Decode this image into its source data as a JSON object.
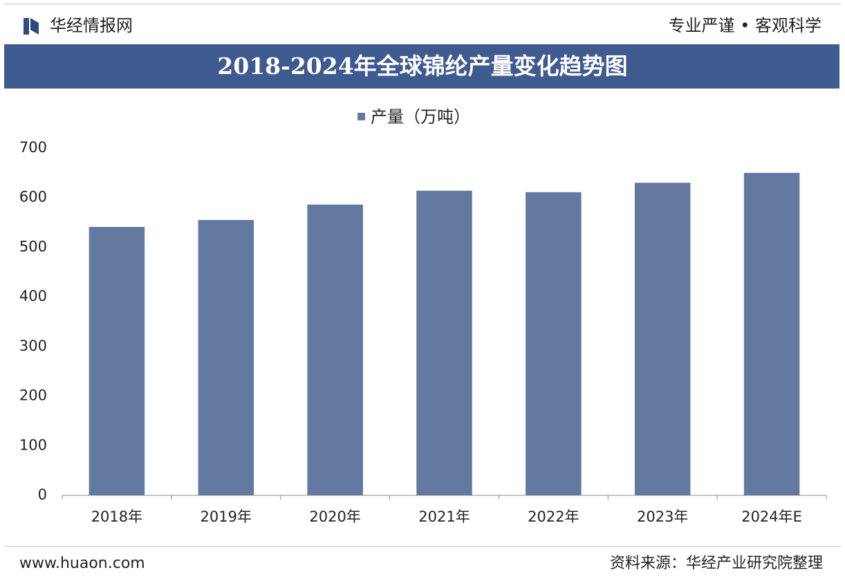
{
  "header": {
    "logo_text": "华经情报网",
    "slogan": "专业严谨 • 客观科学"
  },
  "chart_data": {
    "type": "bar",
    "title": "2018-2024年全球锦纶产量变化趋势图",
    "categories": [
      "2018年",
      "2019年",
      "2020年",
      "2021年",
      "2022年",
      "2023年",
      "2024年E"
    ],
    "series": [
      {
        "name": "产量（万吨）",
        "color": "#6479a0",
        "values": [
          541,
          555,
          586,
          614,
          611,
          630,
          650
        ]
      }
    ],
    "ylim": [
      0,
      700
    ],
    "yticks": [
      0,
      100,
      200,
      300,
      400,
      500,
      600,
      700
    ],
    "grid": false
  },
  "footer": {
    "website": "www.huaon.com",
    "source": "资料来源：华经产业研究院整理"
  }
}
